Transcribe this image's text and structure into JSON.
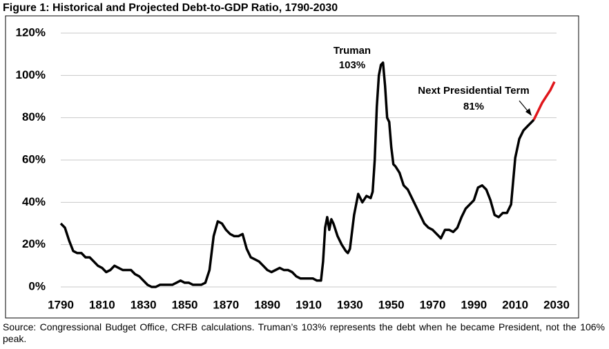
{
  "chart_data": {
    "type": "line",
    "title": "Figure 1: Historical and Projected Debt-to-GDP Ratio, 1790-2030",
    "source": "Source: Congressional Budget Office, CRFB calculations. Truman’s 103% represents the debt when he became President, not the 106% peak.",
    "annotations": [
      "Truman",
      "103%",
      "Next Presidential Term",
      "81%"
    ],
    "xlim": [
      1790,
      2030
    ],
    "xticks": [
      1790,
      1810,
      1830,
      1850,
      1870,
      1890,
      1910,
      1930,
      1950,
      1970,
      1990,
      2010,
      2030
    ],
    "ylim": [
      0,
      120
    ],
    "yticks": [
      {
        "value": 0,
        "label": "0%"
      },
      {
        "value": 20,
        "label": "20%"
      },
      {
        "value": 40,
        "label": "40%"
      },
      {
        "value": 60,
        "label": "60%"
      },
      {
        "value": 80,
        "label": "80%"
      },
      {
        "value": 100,
        "label": "100%"
      },
      {
        "value": 120,
        "label": "120%"
      }
    ],
    "grid": true,
    "series": [
      {
        "color": "#000000",
        "x": [
          1790,
          1792,
          1794,
          1796,
          1798,
          1800,
          1802,
          1804,
          1806,
          1808,
          1810,
          1812,
          1814,
          1816,
          1818,
          1820,
          1822,
          1824,
          1826,
          1828,
          1830,
          1832,
          1834,
          1836,
          1838,
          1840,
          1842,
          1844,
          1846,
          1848,
          1850,
          1852,
          1854,
          1856,
          1858,
          1860,
          1862,
          1864,
          1866,
          1868,
          1870,
          1872,
          1874,
          1876,
          1878,
          1880,
          1882,
          1884,
          1886,
          1888,
          1890,
          1892,
          1894,
          1896,
          1898,
          1900,
          1902,
          1904,
          1906,
          1908,
          1910,
          1912,
          1914,
          1916,
          1917,
          1918,
          1919,
          1920,
          1921,
          1922,
          1924,
          1926,
          1928,
          1929,
          1930,
          1932,
          1934,
          1936,
          1938,
          1940,
          1941,
          1942,
          1943,
          1944,
          1945,
          1946,
          1947,
          1948,
          1949,
          1950,
          1951,
          1952,
          1954,
          1956,
          1958,
          1960,
          1962,
          1964,
          1966,
          1968,
          1970,
          1972,
          1974,
          1976,
          1978,
          1980,
          1982,
          1984,
          1986,
          1988,
          1990,
          1992,
          1994,
          1996,
          1998,
          2000,
          2002,
          2004,
          2006,
          2008,
          2010,
          2012,
          2014,
          2016,
          2018,
          2019
        ],
        "values": [
          30,
          28,
          22,
          17,
          16,
          16,
          14,
          14,
          12,
          10,
          9,
          7,
          8,
          10,
          9,
          8,
          8,
          8,
          6,
          5,
          3,
          1,
          0,
          0,
          1,
          1,
          1,
          1,
          2,
          3,
          2,
          2,
          1,
          1,
          1,
          2,
          8,
          24,
          31,
          30,
          27,
          25,
          24,
          24,
          25,
          18,
          14,
          13,
          12,
          10,
          8,
          7,
          8,
          9,
          8,
          8,
          7,
          5,
          4,
          4,
          4,
          4,
          3,
          3,
          12,
          28,
          33,
          27,
          32,
          30,
          24,
          20,
          17,
          16,
          18,
          34,
          44,
          40,
          43,
          42,
          45,
          60,
          85,
          100,
          105,
          106,
          95,
          80,
          78,
          66,
          58,
          57,
          54,
          48,
          46,
          42,
          38,
          34,
          30,
          28,
          27,
          25,
          23,
          27,
          27,
          26,
          28,
          33,
          37,
          39,
          41,
          47,
          48,
          46,
          41,
          34,
          33,
          35,
          35,
          39,
          61,
          70,
          74,
          76,
          78,
          79
        ]
      },
      {
        "color": "#e0161b",
        "x": [
          2019,
          2021,
          2023,
          2025,
          2027,
          2029
        ],
        "values": [
          79,
          83,
          87,
          90,
          93,
          97
        ]
      }
    ]
  }
}
